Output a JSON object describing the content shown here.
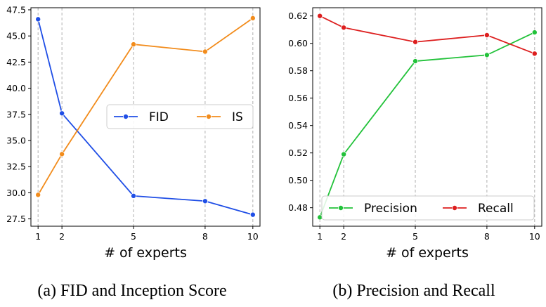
{
  "chart_data": [
    {
      "type": "line",
      "caption": "(a) FID and Inception Score",
      "xlabel": "# of experts",
      "x": [
        1,
        2,
        5,
        8,
        10
      ],
      "xticks": [
        "1",
        "2",
        "5",
        "8",
        "10"
      ],
      "xlim": [
        0.7,
        10.3
      ],
      "ylim": [
        26.8,
        47.7
      ],
      "yticks": [
        "27.5",
        "30.0",
        "32.5",
        "35.0",
        "37.5",
        "40.0",
        "42.5",
        "45.0",
        "47.5"
      ],
      "grid": "vertical dashed at x ticks",
      "legend": "center-right",
      "series": [
        {
          "name": "FID",
          "color": "#1f4ee6",
          "values": [
            46.6,
            37.6,
            29.7,
            29.2,
            27.9
          ]
        },
        {
          "name": "IS",
          "color": "#f28c1c",
          "values": [
            29.8,
            33.7,
            44.2,
            43.5,
            46.7
          ]
        }
      ]
    },
    {
      "type": "line",
      "caption": "(b) Precision and Recall",
      "xlabel": "# of experts",
      "x": [
        1,
        2,
        5,
        8,
        10
      ],
      "xticks": [
        "1",
        "2",
        "5",
        "8",
        "10"
      ],
      "xlim": [
        0.7,
        10.3
      ],
      "ylim": [
        0.4665,
        0.626
      ],
      "yticks": [
        "0.48",
        "0.50",
        "0.52",
        "0.54",
        "0.56",
        "0.58",
        "0.60",
        "0.62"
      ],
      "grid": "vertical dashed at x ticks",
      "legend": "bottom",
      "series": [
        {
          "name": "Precision",
          "color": "#22c23a",
          "values": [
            0.473,
            0.519,
            0.587,
            0.5915,
            0.608
          ]
        },
        {
          "name": "Recall",
          "color": "#dd1f1f",
          "values": [
            0.62,
            0.6115,
            0.601,
            0.606,
            0.5925
          ]
        }
      ]
    }
  ]
}
